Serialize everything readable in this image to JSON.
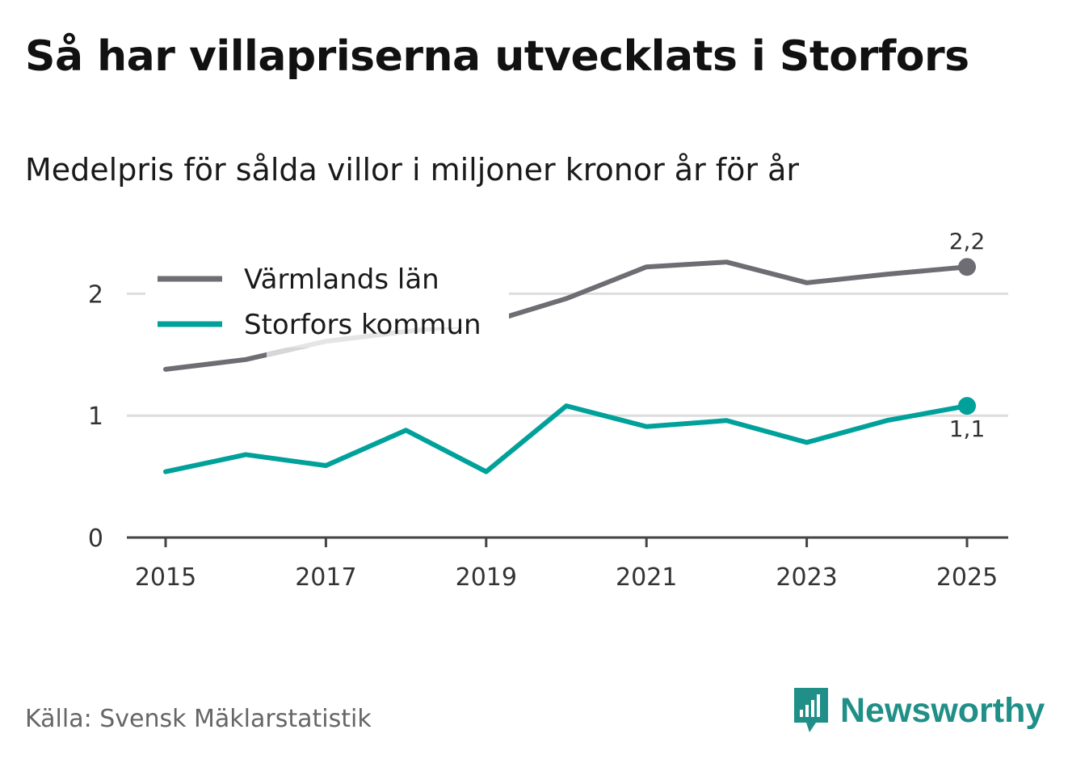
{
  "title": "Så har villapriserna utvecklats i Storfors",
  "subtitle": "Medelpris för sålda villor i miljoner kronor år för år",
  "source": "Källa: Svensk Mäklarstatistik",
  "brand": "Newsworthy",
  "colors": {
    "varmland": "#6e6d73",
    "storfors": "#00a19a",
    "varmland_faded": "#e2e2e2",
    "grid": "#dddddd",
    "axis": "#444444",
    "brand": "#1f8f88"
  },
  "chart_data": {
    "type": "line",
    "title": "Så har villapriserna utvecklats i Storfors",
    "subtitle": "Medelpris för sålda villor i miljoner kronor år för år",
    "xlabel": "",
    "ylabel": "",
    "x": [
      2015,
      2016,
      2017,
      2018,
      2019,
      2020,
      2021,
      2022,
      2023,
      2024,
      2025
    ],
    "xticks": [
      "2015",
      "2017",
      "2019",
      "2021",
      "2023",
      "2025"
    ],
    "yticks": [
      "0",
      "1",
      "2"
    ],
    "ylim": [
      0,
      2.5
    ],
    "grid": true,
    "legend_position": "top-left",
    "series": [
      {
        "name": "Värmlands län",
        "values": [
          1.38,
          1.46,
          1.61,
          1.69,
          1.76,
          1.96,
          2.22,
          2.26,
          2.09,
          2.16,
          2.22
        ],
        "end_label": "2,2"
      },
      {
        "name": "Storfors kommun",
        "values": [
          0.54,
          0.68,
          0.59,
          0.88,
          0.54,
          1.08,
          0.91,
          0.96,
          0.78,
          0.96,
          1.08
        ],
        "end_label": "1,1"
      }
    ]
  }
}
